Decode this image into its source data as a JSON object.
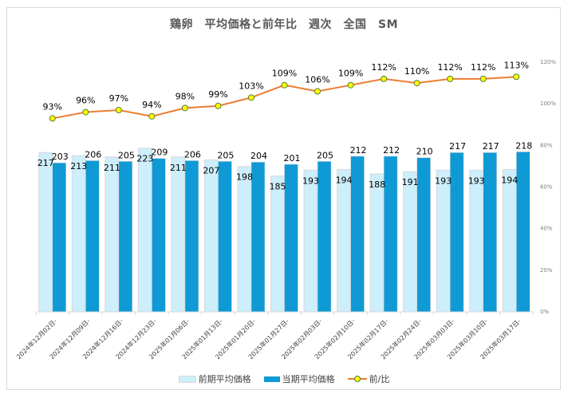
{
  "chart_data": {
    "type": "bar+line",
    "title": "鶏卵　平均価格と前年比　週次　全国　SM",
    "categories": [
      "2024年12月02日-",
      "2024年12月09日-",
      "2024年12月16日-",
      "2024年12月23日-",
      "2025年01月06日-",
      "2025年01月13日-",
      "2025年01月20日-",
      "2025年01月27日-",
      "2025年02月03日-",
      "2025年02月10日-",
      "2025年02月17日-",
      "2025年02月24日-",
      "2025年03月03日-",
      "2025年03月10日-",
      "2025年03月17日-"
    ],
    "series": [
      {
        "name": "前期平均価格",
        "type": "bar",
        "axis": "left",
        "values": [
          217,
          213,
          211,
          223,
          211,
          207,
          198,
          185,
          193,
          194,
          188,
          191,
          193,
          193,
          194
        ]
      },
      {
        "name": "当期平均価格",
        "type": "bar",
        "axis": "left",
        "values": [
          203,
          206,
          205,
          209,
          206,
          205,
          204,
          201,
          205,
          212,
          212,
          210,
          217,
          217,
          218
        ]
      },
      {
        "name": "前/比",
        "type": "line",
        "axis": "right",
        "unit": "%",
        "values": [
          93,
          96,
          97,
          94,
          98,
          99,
          103,
          109,
          106,
          109,
          112,
          110,
          112,
          112,
          113
        ]
      }
    ],
    "left_axis": {
      "visible": false,
      "range": [
        0,
        340
      ]
    },
    "right_axis": {
      "visible": true,
      "range": [
        0,
        120
      ],
      "ticks": [
        "0%",
        "20%",
        "40%",
        "60%",
        "80%",
        "100%",
        "120%"
      ]
    },
    "xlabel": "",
    "ylabel": "",
    "grid": false,
    "legend": "bottom",
    "colors": {
      "prev_bar": "#cdeefb",
      "prev_bar_border": "#d9d9d9",
      "cur_bar": "#0f9ad6",
      "line": "#ed7d31",
      "marker_fill": "#ffff00",
      "marker_border": "#538135"
    }
  },
  "legend": {
    "items": [
      {
        "label": "前期平均価格"
      },
      {
        "label": "当期平均価格"
      },
      {
        "label": "前/比"
      }
    ]
  }
}
